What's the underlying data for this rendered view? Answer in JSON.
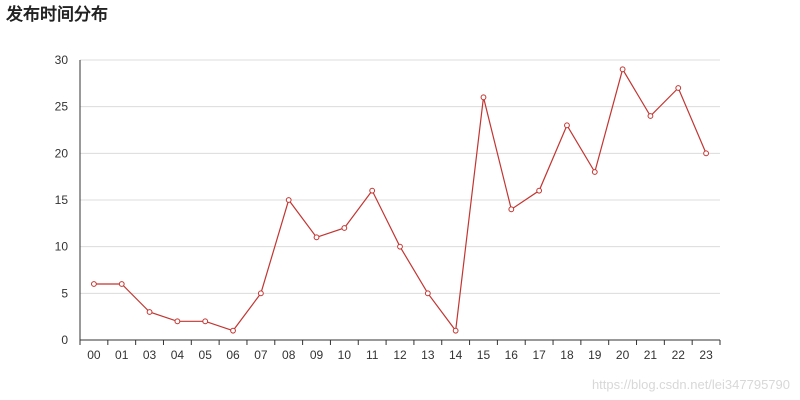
{
  "chart_data": {
    "type": "line",
    "title": "发布时间分布",
    "xlabel": "",
    "ylabel": "",
    "categories": [
      "00",
      "01",
      "03",
      "04",
      "05",
      "06",
      "07",
      "08",
      "09",
      "10",
      "11",
      "12",
      "13",
      "14",
      "15",
      "16",
      "17",
      "18",
      "19",
      "20",
      "21",
      "22",
      "23"
    ],
    "series": [
      {
        "values": [
          6,
          6,
          3,
          2,
          2,
          1,
          5,
          15,
          11,
          12,
          16,
          10,
          5,
          1,
          26,
          14,
          16,
          23,
          18,
          29,
          24,
          27,
          20
        ],
        "color": "#c23531"
      }
    ],
    "ylim": [
      0,
      30
    ],
    "yticks": [
      0,
      5,
      10,
      15,
      20,
      25,
      30
    ],
    "grid": true,
    "legend": "none"
  },
  "watermark": "https://blog.csdn.net/lei347795790",
  "colors": {
    "line": "#c23531",
    "grid": "#dcdcdc",
    "axis": "#333333"
  }
}
